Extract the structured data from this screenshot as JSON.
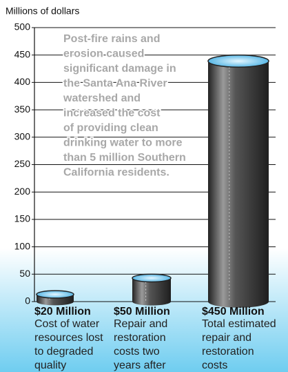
{
  "chart_data": {
    "type": "bar",
    "y_axis_label": "Millions of dollars",
    "annotation": [
      "Post-fire rains and",
      "erosion caused",
      "significant damage in",
      "the Santa Ana River",
      "watershed and",
      "increased the cost",
      "of providing clean",
      "drinking water to more",
      "than 5 million Southern",
      "California residents."
    ],
    "categories": [
      "Cost of water resources lost to degraded quality",
      "Repair and restoration costs two years after fires",
      "Total estimated repair and restoration costs"
    ],
    "values": [
      20,
      50,
      450
    ],
    "value_labels": [
      "$20 Million",
      "$50 Million",
      "$450 Million"
    ],
    "color": "#3a3a3a",
    "ylim": [
      0,
      500
    ],
    "yticks": [
      0,
      50,
      100,
      150,
      200,
      250,
      300,
      350,
      400,
      450,
      500
    ],
    "grid": true
  }
}
